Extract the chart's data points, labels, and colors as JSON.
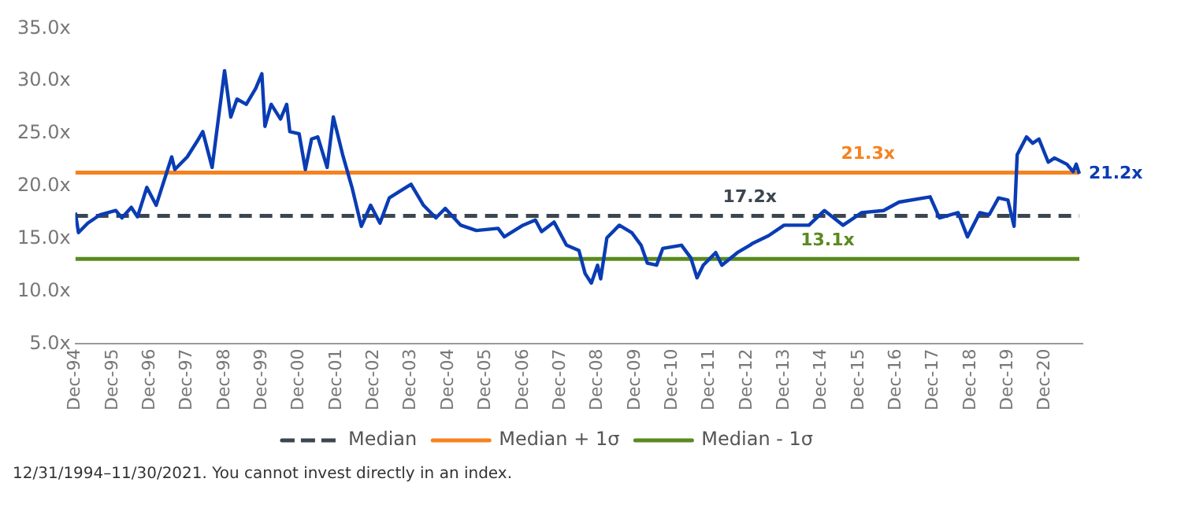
{
  "chart_data": {
    "type": "line",
    "x": [
      "1994-12",
      "1995-01",
      "1995-04",
      "1995-08",
      "1996-01",
      "1996-03",
      "1996-06",
      "1996-08",
      "1996-11",
      "1997-02",
      "1997-07",
      "1997-08",
      "1997-12",
      "1998-03",
      "1998-05",
      "1998-08",
      "1998-12",
      "1999-02",
      "1999-04",
      "1999-07",
      "1999-10",
      "1999-12",
      "2000-01",
      "2000-03",
      "2000-06",
      "2000-08",
      "2000-09",
      "2000-12",
      "2001-02",
      "2001-04",
      "2001-06",
      "2001-09",
      "2001-11",
      "2002-02",
      "2002-05",
      "2002-08",
      "2002-11",
      "2003-02",
      "2003-05",
      "2003-12",
      "2004-04",
      "2004-08",
      "2004-11",
      "2005-04",
      "2005-09",
      "2006-04",
      "2006-06",
      "2006-12",
      "2007-04",
      "2007-06",
      "2007-10",
      "2008-02",
      "2008-06",
      "2008-08",
      "2008-10",
      "2008-12",
      "2009-01",
      "2009-03",
      "2009-07",
      "2009-11",
      "2010-02",
      "2010-04",
      "2010-07",
      "2010-09",
      "2011-03",
      "2011-06",
      "2011-08",
      "2011-10",
      "2012-02",
      "2012-04",
      "2012-09",
      "2013-01",
      "2013-02",
      "2013-07",
      "2013-12",
      "2014-08",
      "2015-01",
      "2015-07",
      "2016-01",
      "2016-08",
      "2017-01",
      "2017-11",
      "2018-02",
      "2018-08",
      "2018-11",
      "2019-03",
      "2019-06",
      "2019-09",
      "2019-12",
      "2020-02",
      "2020-03",
      "2020-06",
      "2020-08",
      "2020-10",
      "2021-01",
      "2021-03",
      "2021-07",
      "2021-09",
      "2021-10",
      "2021-11"
    ],
    "series": [
      {
        "color": "#0a3cb4",
        "values": [
          17.5,
          15.6,
          16.5,
          17.3,
          17.7,
          17.0,
          18.0,
          17.1,
          19.9,
          18.2,
          22.8,
          21.6,
          22.8,
          24.2,
          25.2,
          21.8,
          31.0,
          26.6,
          28.3,
          27.8,
          29.3,
          30.7,
          25.7,
          27.8,
          26.4,
          27.8,
          25.2,
          25.0,
          21.6,
          24.5,
          24.7,
          21.8,
          26.6,
          23.0,
          19.9,
          16.2,
          18.2,
          16.5,
          18.9,
          20.2,
          18.2,
          17.0,
          17.9,
          16.3,
          15.8,
          16.0,
          15.2,
          16.3,
          16.8,
          15.7,
          16.6,
          14.4,
          13.9,
          11.7,
          10.8,
          12.5,
          11.2,
          15.1,
          16.3,
          15.6,
          14.4,
          12.7,
          12.5,
          14.1,
          14.4,
          13.2,
          11.3,
          12.5,
          13.7,
          12.5,
          13.7,
          14.4,
          14.6,
          15.3,
          16.3,
          16.3,
          17.7,
          16.3,
          17.5,
          17.7,
          18.5,
          19.0,
          17.0,
          17.5,
          15.2,
          17.5,
          17.3,
          18.9,
          18.7,
          16.2,
          23.0,
          24.7,
          24.1,
          24.5,
          22.3,
          22.7,
          22.1,
          21.4,
          22.1,
          21.2
        ]
      },
      {
        "name": "Median",
        "color": "#3c4650",
        "line_style": "dashed",
        "x": [
          "1994-12",
          "2021-11"
        ],
        "values": [
          17.2,
          17.2
        ]
      },
      {
        "name": "Median + 1σ",
        "color": "#f58220",
        "x": [
          "1994-12",
          "2021-11"
        ],
        "values": [
          21.3,
          21.3
        ]
      },
      {
        "name": "Median - 1σ",
        "color": "#5a8a1e",
        "x": [
          "1994-12",
          "2021-11"
        ],
        "values": [
          13.1,
          13.1
        ]
      }
    ],
    "xlim": [
      "1994-12",
      "2021-12"
    ],
    "xticks": [
      {
        "value": "1994-12",
        "label": "Dec-94"
      },
      {
        "value": "1995-12",
        "label": "Dec-95"
      },
      {
        "value": "1996-12",
        "label": "Dec-96"
      },
      {
        "value": "1997-12",
        "label": "Dec-97"
      },
      {
        "value": "1998-12",
        "label": "Dec-98"
      },
      {
        "value": "1999-12",
        "label": "Dec-99"
      },
      {
        "value": "2000-12",
        "label": "Dec-00"
      },
      {
        "value": "2001-12",
        "label": "Dec-01"
      },
      {
        "value": "2002-12",
        "label": "Dec-02"
      },
      {
        "value": "2003-12",
        "label": "Dec-03"
      },
      {
        "value": "2004-12",
        "label": "Dec-04"
      },
      {
        "value": "2005-12",
        "label": "Dec-05"
      },
      {
        "value": "2006-12",
        "label": "Dec-06"
      },
      {
        "value": "2007-12",
        "label": "Dec-07"
      },
      {
        "value": "2008-12",
        "label": "Dec-08"
      },
      {
        "value": "2009-12",
        "label": "Dec-09"
      },
      {
        "value": "2010-12",
        "label": "Dec-10"
      },
      {
        "value": "2011-12",
        "label": "Dec-11"
      },
      {
        "value": "2012-12",
        "label": "Dec-12"
      },
      {
        "value": "2013-12",
        "label": "Dec-13"
      },
      {
        "value": "2014-12",
        "label": "Dec-14"
      },
      {
        "value": "2015-12",
        "label": "Dec-15"
      },
      {
        "value": "2016-12",
        "label": "Dec-16"
      },
      {
        "value": "2017-12",
        "label": "Dec-17"
      },
      {
        "value": "2018-12",
        "label": "Dec-18"
      },
      {
        "value": "2019-12",
        "label": "Dec-19"
      },
      {
        "value": "2020-12",
        "label": "Dec-20"
      }
    ],
    "ylim": [
      5,
      35
    ],
    "yticks": [
      {
        "value": 5,
        "label": "5.0x"
      },
      {
        "value": 10,
        "label": "10.0x"
      },
      {
        "value": 15,
        "label": "15.0x"
      },
      {
        "value": 20,
        "label": "20.0x"
      },
      {
        "value": 25,
        "label": "25.0x"
      },
      {
        "value": 30,
        "label": "30.0x"
      },
      {
        "value": 35,
        "label": "35.0x"
      }
    ],
    "grid": false,
    "legend": "bottom",
    "marker": "none",
    "annotations": [
      {
        "text": "17.2x",
        "x": "2013-01",
        "y": 17.2
      },
      {
        "text": "21.3x",
        "x": "2016-03",
        "y": 21.3
      },
      {
        "text": "13.1x",
        "x": "2015-02",
        "y": 13.1
      },
      {
        "text": "21.2x",
        "x": "2021-11",
        "y": 21.2
      },
      "12/31/1994–11/30/2021. You cannot invest directly in an index."
    ]
  }
}
